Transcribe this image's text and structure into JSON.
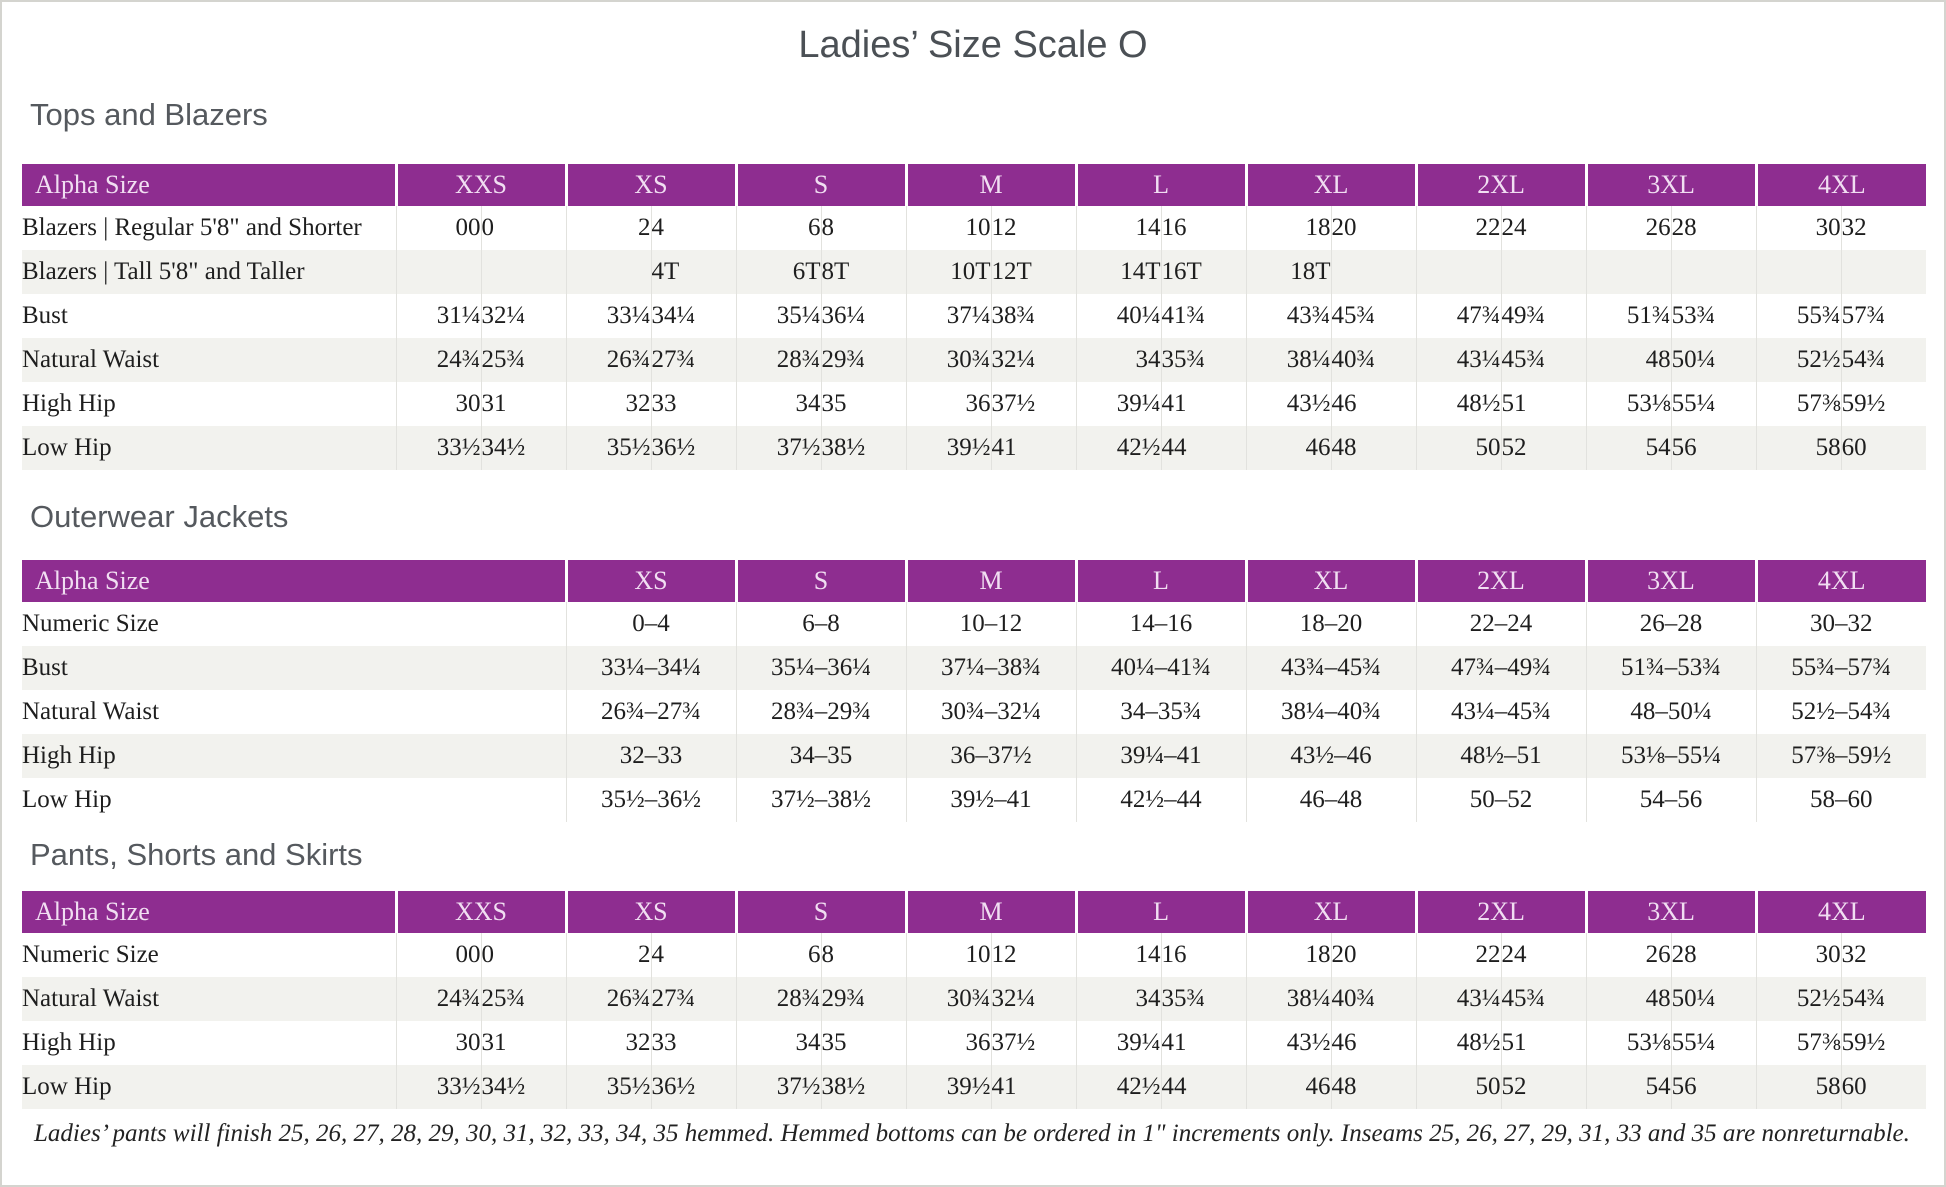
{
  "page": {
    "title": "Ladies’ Size Scale O",
    "footnote": "Ladies’ pants will finish 25, 26, 27, 28, 29, 30, 31, 32, 33, 34, 35 hemmed. Hemmed bottoms can be ordered in 1\" increments only. Inseams 25, 26, 27, 29, 31, 33 and 35 are nonreturnable."
  },
  "colors": {
    "header_purple": "#8e2d90",
    "header_text": "#f1def2",
    "row_alt": "#f2f2ee",
    "grid_line": "#e2e2de",
    "heading_gray": "#55595e",
    "title_gray": "#4b5055"
  },
  "tables": [
    {
      "name": "tops-and-blazers",
      "heading": "Tops and Blazers",
      "corner_label": "Alpha Size",
      "layout": "paired",
      "size_headers": [
        "XXS",
        "XS",
        "S",
        "M",
        "L",
        "XL",
        "2XL",
        "3XL",
        "4XL"
      ],
      "rows": [
        {
          "label": "Blazers  |  Regular 5'8\" and Shorter",
          "values": [
            "00",
            "0",
            "2",
            "4",
            "6",
            "8",
            "10",
            "12",
            "14",
            "16",
            "18",
            "20",
            "22",
            "24",
            "26",
            "28",
            "30",
            "32"
          ]
        },
        {
          "label": "Blazers  |  Tall 5'8\" and Taller",
          "values": [
            "",
            "",
            "",
            "4T",
            "6T",
            "8T",
            "10T",
            "12T",
            "14T",
            "16T",
            "18T",
            "",
            "",
            "",
            "",
            "",
            "",
            ""
          ]
        },
        {
          "label": "Bust",
          "values": [
            "31¼",
            "32¼",
            "33¼",
            "34¼",
            "35¼",
            "36¼",
            "37¼",
            "38¾",
            "40¼",
            "41¾",
            "43¾",
            "45¾",
            "47¾",
            "49¾",
            "51¾",
            "53¾",
            "55¾",
            "57¾"
          ]
        },
        {
          "label": "Natural Waist",
          "values": [
            "24¾",
            "25¾",
            "26¾",
            "27¾",
            "28¾",
            "29¾",
            "30¾",
            "32¼",
            "34",
            "35¾",
            "38¼",
            "40¾",
            "43¼",
            "45¾",
            "48",
            "50¼",
            "52½",
            "54¾"
          ]
        },
        {
          "label": "High Hip",
          "values": [
            "30",
            "31",
            "32",
            "33",
            "34",
            "35",
            "36",
            "37½",
            "39¼",
            "41",
            "43½",
            "46",
            "48½",
            "51",
            "53⅛",
            "55¼",
            "57⅜",
            "59½"
          ]
        },
        {
          "label": "Low Hip",
          "values": [
            "33½",
            "34½",
            "35½",
            "36½",
            "37½",
            "38½",
            "39½",
            "41",
            "42½",
            "44",
            "46",
            "48",
            "50",
            "52",
            "54",
            "56",
            "58",
            "60"
          ]
        }
      ]
    },
    {
      "name": "outerwear-jackets",
      "heading": "Outerwear Jackets",
      "corner_label": "Alpha Size",
      "layout": "single",
      "size_headers": [
        "XS",
        "S",
        "M",
        "L",
        "XL",
        "2XL",
        "3XL",
        "4XL"
      ],
      "rows": [
        {
          "label": "Numeric Size",
          "values": [
            "0–4",
            "6–8",
            "10–12",
            "14–16",
            "18–20",
            "22–24",
            "26–28",
            "30–32"
          ]
        },
        {
          "label": "Bust",
          "values": [
            "33¼–34¼",
            "35¼–36¼",
            "37¼–38¾",
            "40¼–41¾",
            "43¾–45¾",
            "47¾–49¾",
            "51¾–53¾",
            "55¾–57¾"
          ]
        },
        {
          "label": "Natural Waist",
          "values": [
            "26¾–27¾",
            "28¾–29¾",
            "30¾–32¼",
            "34–35¾",
            "38¼–40¾",
            "43¼–45¾",
            "48–50¼",
            "52½–54¾"
          ]
        },
        {
          "label": "High Hip",
          "values": [
            "32–33",
            "34–35",
            "36–37½",
            "39¼–41",
            "43½–46",
            "48½–51",
            "53⅛–55¼",
            "57⅜–59½"
          ]
        },
        {
          "label": "Low Hip",
          "values": [
            "35½–36½",
            "37½–38½",
            "39½–41",
            "42½–44",
            "46–48",
            "50–52",
            "54–56",
            "58–60"
          ]
        }
      ]
    },
    {
      "name": "pants-shorts-and-skirts",
      "heading": "Pants, Shorts and Skirts",
      "corner_label": "Alpha Size",
      "layout": "paired",
      "size_headers": [
        "XXS",
        "XS",
        "S",
        "M",
        "L",
        "XL",
        "2XL",
        "3XL",
        "4XL"
      ],
      "rows": [
        {
          "label": "Numeric Size",
          "values": [
            "00",
            "0",
            "2",
            "4",
            "6",
            "8",
            "10",
            "12",
            "14",
            "16",
            "18",
            "20",
            "22",
            "24",
            "26",
            "28",
            "30",
            "32"
          ]
        },
        {
          "label": "Natural Waist",
          "values": [
            "24¾",
            "25¾",
            "26¾",
            "27¾",
            "28¾",
            "29¾",
            "30¾",
            "32¼",
            "34",
            "35¾",
            "38¼",
            "40¾",
            "43¼",
            "45¾",
            "48",
            "50¼",
            "52½",
            "54¾"
          ]
        },
        {
          "label": "High Hip",
          "values": [
            "30",
            "31",
            "32",
            "33",
            "34",
            "35",
            "36",
            "37½",
            "39¼",
            "41",
            "43½",
            "46",
            "48½",
            "51",
            "53⅛",
            "55¼",
            "57⅜",
            "59½"
          ]
        },
        {
          "label": "Low Hip",
          "values": [
            "33½",
            "34½",
            "35½",
            "36½",
            "37½",
            "38½",
            "39½",
            "41",
            "42½",
            "44",
            "46",
            "48",
            "50",
            "52",
            "54",
            "56",
            "58",
            "60"
          ]
        }
      ]
    }
  ]
}
